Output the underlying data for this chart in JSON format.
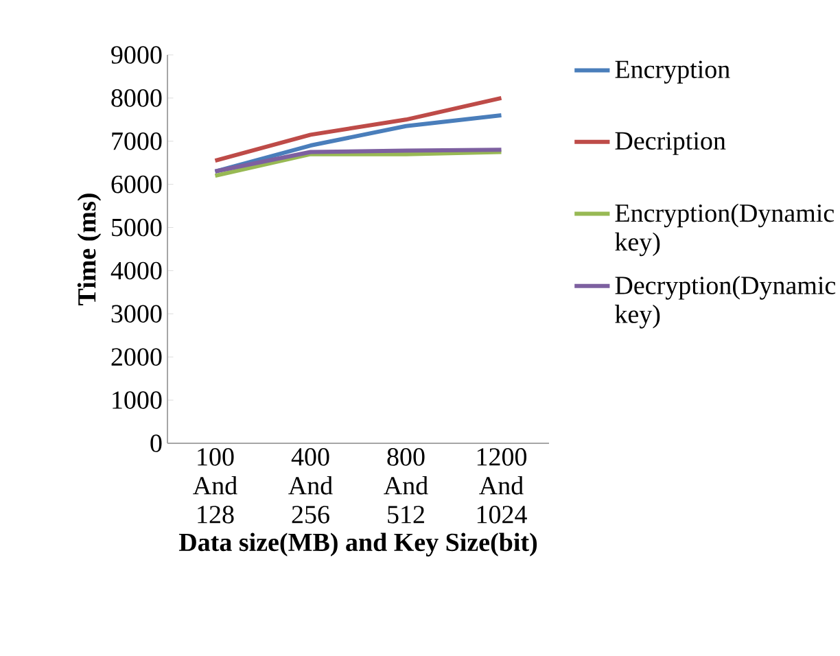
{
  "chart_data": {
    "type": "line",
    "xlabel": "Data size(MB) and Key Size(bit)",
    "ylabel": "Time (ms)",
    "categories": [
      "100 And 128",
      "400 And 256",
      "800 And 512",
      "1200 And 1024"
    ],
    "series": [
      {
        "name": "Encryption",
        "color": "#4a7ebb",
        "values": [
          6300,
          6900,
          7350,
          7600
        ]
      },
      {
        "name": "Decription",
        "color": "#be4b48",
        "values": [
          6550,
          7150,
          7500,
          8000
        ]
      },
      {
        "name": "Encryption(Dynamic key)",
        "color": "#98b954",
        "values": [
          6200,
          6700,
          6700,
          6750
        ]
      },
      {
        "name": "Decryption(Dynamic key)",
        "color": "#7d60a0",
        "values": [
          6300,
          6750,
          6780,
          6800
        ]
      }
    ],
    "ylim": [
      0,
      9000
    ],
    "yticks": [
      0,
      1000,
      2000,
      3000,
      4000,
      5000,
      6000,
      7000,
      8000,
      9000
    ],
    "grid": false,
    "legend": "right",
    "marker": "none",
    "line_style": "solid"
  }
}
